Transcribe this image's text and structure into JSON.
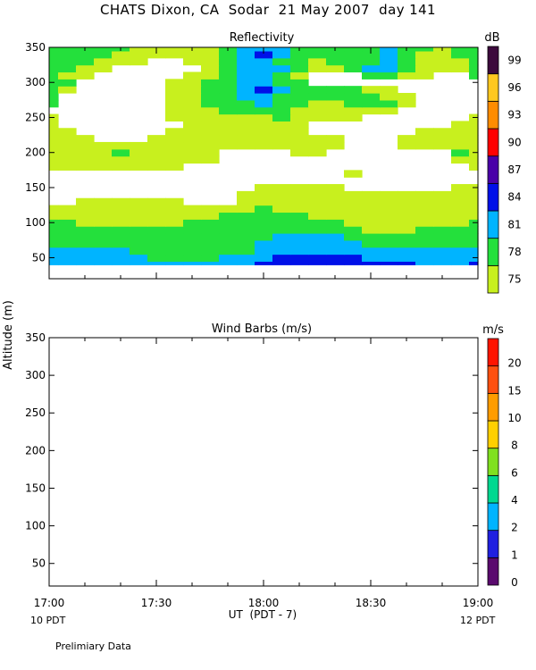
{
  "page_title": "CHATS Dixon, CA  Sodar  21 May 2007  day 141",
  "y_axis_label": "Altitude (m)",
  "x_axis_label": "UT  (PDT - 7)",
  "x_left_note": "10 PDT",
  "x_right_note": "12 PDT",
  "footer_note": "Prelimiary Data",
  "colors": {
    "c75": "#c8f01e",
    "c78": "#24e03c",
    "c81": "#00b4ff",
    "c84": "#0010e8",
    "c87": "#4a00a8",
    "c90": "#ff0000",
    "c93": "#ff8c00",
    "c96": "#ffc820",
    "c99": "#3c0a3c"
  },
  "chart_data": [
    {
      "type": "heatmap",
      "title": "Reflectivity",
      "unit_label": "dB",
      "xlabel": "UT  (PDT - 7)",
      "ylabel": "Altitude (m)",
      "x_ticks": [
        "17:00",
        "17:30",
        "18:00",
        "18:30",
        "19:00"
      ],
      "x_range_minutes_ut": [
        1020,
        1140
      ],
      "ylim": [
        20,
        350
      ],
      "y_ticks": [
        50,
        100,
        150,
        200,
        250,
        300,
        350
      ],
      "altitudes": [
        40,
        50,
        60,
        70,
        80,
        90,
        100,
        110,
        120,
        130,
        140,
        150,
        160,
        170,
        180,
        190,
        200,
        210,
        220,
        230,
        240,
        250,
        260,
        270,
        280,
        290,
        300,
        310,
        320,
        330,
        340,
        350
      ],
      "times": [
        "17:00",
        "17:05",
        "17:10",
        "17:15",
        "17:20",
        "17:25",
        "17:30",
        "17:35",
        "17:40",
        "17:45",
        "17:50",
        "17:55",
        "18:00",
        "18:05",
        "18:10",
        "18:15",
        "18:20",
        "18:25",
        "18:30",
        "18:35",
        "18:40",
        "18:45",
        "18:50",
        "18:55",
        "19:00"
      ],
      "values_db": [
        [
          81,
          81,
          81,
          81,
          81,
          81,
          81,
          81,
          81,
          81,
          81,
          81,
          84,
          84,
          84,
          84,
          84,
          84,
          84,
          84,
          84,
          81,
          81,
          81,
          84
        ],
        [
          81,
          81,
          81,
          81,
          81,
          81,
          78,
          78,
          78,
          78,
          81,
          81,
          81,
          84,
          84,
          84,
          84,
          84,
          81,
          81,
          81,
          81,
          81,
          81,
          81
        ],
        [
          81,
          81,
          81,
          81,
          81,
          78,
          78,
          78,
          78,
          78,
          78,
          78,
          81,
          81,
          81,
          81,
          81,
          81,
          81,
          81,
          81,
          81,
          81,
          81,
          81
        ],
        [
          78,
          78,
          78,
          78,
          78,
          78,
          78,
          78,
          78,
          78,
          78,
          78,
          81,
          81,
          81,
          81,
          81,
          81,
          78,
          78,
          78,
          78,
          78,
          78,
          78
        ],
        [
          78,
          78,
          78,
          78,
          78,
          78,
          78,
          78,
          78,
          78,
          78,
          78,
          78,
          81,
          81,
          81,
          81,
          78,
          78,
          78,
          78,
          78,
          78,
          78,
          78
        ],
        [
          78,
          78,
          78,
          78,
          78,
          78,
          78,
          78,
          78,
          78,
          78,
          78,
          78,
          78,
          78,
          78,
          78,
          78,
          75,
          75,
          75,
          78,
          78,
          78,
          78
        ],
        [
          78,
          78,
          75,
          75,
          75,
          75,
          75,
          75,
          78,
          78,
          78,
          78,
          78,
          78,
          78,
          78,
          78,
          75,
          75,
          75,
          75,
          75,
          75,
          75,
          78
        ],
        [
          75,
          75,
          75,
          75,
          75,
          75,
          75,
          75,
          75,
          75,
          78,
          78,
          78,
          78,
          78,
          75,
          75,
          75,
          75,
          75,
          75,
          75,
          75,
          75,
          75
        ],
        [
          75,
          75,
          75,
          75,
          75,
          75,
          75,
          75,
          75,
          75,
          75,
          75,
          78,
          75,
          75,
          75,
          75,
          75,
          75,
          75,
          75,
          75,
          75,
          75,
          75
        ],
        [
          0,
          0,
          75,
          75,
          75,
          75,
          75,
          75,
          0,
          0,
          0,
          75,
          75,
          75,
          75,
          75,
          75,
          75,
          75,
          75,
          75,
          75,
          75,
          75,
          75
        ],
        [
          0,
          0,
          0,
          0,
          0,
          0,
          0,
          0,
          0,
          0,
          0,
          75,
          75,
          75,
          75,
          75,
          75,
          75,
          75,
          75,
          75,
          75,
          75,
          75,
          75
        ],
        [
          0,
          0,
          0,
          0,
          0,
          0,
          0,
          0,
          0,
          0,
          0,
          0,
          75,
          75,
          75,
          75,
          75,
          0,
          0,
          0,
          0,
          0,
          0,
          75,
          75
        ],
        [
          0,
          0,
          0,
          0,
          0,
          0,
          0,
          0,
          0,
          0,
          0,
          0,
          0,
          0,
          0,
          0,
          0,
          0,
          0,
          0,
          0,
          0,
          0,
          0,
          0
        ],
        [
          0,
          0,
          0,
          0,
          0,
          0,
          0,
          0,
          0,
          0,
          0,
          0,
          0,
          0,
          0,
          0,
          0,
          75,
          0,
          0,
          0,
          0,
          0,
          0,
          0
        ],
        [
          75,
          75,
          75,
          75,
          75,
          75,
          75,
          75,
          0,
          0,
          0,
          0,
          0,
          0,
          0,
          0,
          0,
          0,
          0,
          0,
          0,
          0,
          0,
          0,
          75
        ],
        [
          75,
          75,
          75,
          75,
          75,
          75,
          75,
          75,
          75,
          75,
          0,
          0,
          0,
          0,
          0,
          0,
          0,
          0,
          0,
          0,
          0,
          0,
          0,
          75,
          75
        ],
        [
          75,
          75,
          75,
          75,
          78,
          75,
          75,
          75,
          75,
          75,
          0,
          0,
          0,
          0,
          75,
          75,
          0,
          0,
          0,
          0,
          0,
          0,
          0,
          78,
          75
        ],
        [
          75,
          75,
          75,
          75,
          75,
          75,
          75,
          75,
          75,
          75,
          75,
          75,
          75,
          75,
          75,
          75,
          75,
          0,
          0,
          0,
          75,
          75,
          75,
          75,
          75
        ],
        [
          75,
          75,
          75,
          0,
          0,
          0,
          75,
          75,
          75,
          75,
          75,
          75,
          75,
          75,
          75,
          75,
          75,
          0,
          0,
          0,
          75,
          75,
          75,
          75,
          75
        ],
        [
          75,
          75,
          0,
          0,
          0,
          0,
          0,
          75,
          75,
          75,
          75,
          75,
          75,
          75,
          75,
          0,
          0,
          0,
          0,
          0,
          0,
          75,
          75,
          75,
          75
        ],
        [
          75,
          0,
          0,
          0,
          0,
          0,
          0,
          0,
          75,
          75,
          75,
          75,
          75,
          75,
          75,
          0,
          0,
          0,
          0,
          0,
          0,
          0,
          0,
          75,
          75
        ],
        [
          75,
          0,
          0,
          0,
          0,
          0,
          0,
          75,
          75,
          75,
          75,
          75,
          75,
          78,
          75,
          75,
          75,
          75,
          0,
          0,
          0,
          0,
          0,
          0,
          75
        ],
        [
          0,
          0,
          0,
          0,
          0,
          0,
          0,
          75,
          75,
          75,
          78,
          78,
          78,
          78,
          75,
          75,
          75,
          75,
          75,
          75,
          0,
          0,
          0,
          0,
          0
        ],
        [
          78,
          0,
          0,
          0,
          0,
          0,
          0,
          75,
          75,
          78,
          78,
          78,
          81,
          78,
          78,
          75,
          75,
          78,
          78,
          78,
          75,
          0,
          0,
          0,
          0
        ],
        [
          78,
          0,
          0,
          0,
          0,
          0,
          0,
          75,
          75,
          78,
          78,
          81,
          81,
          78,
          78,
          78,
          78,
          78,
          78,
          75,
          75,
          0,
          0,
          0,
          0
        ],
        [
          78,
          75,
          0,
          0,
          0,
          0,
          0,
          75,
          75,
          78,
          78,
          81,
          84,
          81,
          78,
          78,
          78,
          78,
          75,
          75,
          0,
          0,
          0,
          0,
          0
        ],
        [
          78,
          78,
          0,
          0,
          0,
          0,
          0,
          75,
          75,
          78,
          78,
          81,
          81,
          78,
          78,
          0,
          0,
          0,
          0,
          0,
          0,
          0,
          0,
          0,
          0
        ],
        [
          78,
          75,
          75,
          0,
          0,
          0,
          0,
          0,
          75,
          75,
          78,
          81,
          81,
          78,
          75,
          0,
          0,
          0,
          78,
          78,
          75,
          75,
          0,
          0,
          78
        ],
        [
          78,
          78,
          75,
          75,
          0,
          0,
          0,
          0,
          0,
          75,
          78,
          81,
          81,
          81,
          78,
          75,
          75,
          78,
          81,
          81,
          78,
          75,
          75,
          75,
          78
        ],
        [
          78,
          78,
          78,
          75,
          75,
          75,
          0,
          0,
          75,
          75,
          78,
          81,
          81,
          78,
          78,
          75,
          78,
          78,
          78,
          81,
          78,
          75,
          75,
          75,
          78
        ],
        [
          78,
          78,
          78,
          78,
          75,
          75,
          75,
          75,
          75,
          75,
          78,
          81,
          84,
          81,
          78,
          78,
          78,
          78,
          78,
          81,
          78,
          75,
          75,
          78,
          78
        ],
        [
          78,
          78,
          78,
          78,
          78,
          75,
          75,
          75,
          75,
          75,
          78,
          81,
          81,
          81,
          78,
          78,
          78,
          78,
          78,
          81,
          78,
          78,
          75,
          78,
          78
        ]
      ],
      "scale": {
        "labels": [
          "75",
          "78",
          "81",
          "84",
          "87",
          "90",
          "93",
          "96",
          "99"
        ],
        "colors": [
          "#c8f01e",
          "#24e03c",
          "#00b4ff",
          "#0010e8",
          "#4a00a8",
          "#ff0000",
          "#ff8c00",
          "#ffc820",
          "#3c0a3c"
        ]
      }
    },
    {
      "type": "scatter",
      "title": "Wind Barbs (m/s)",
      "unit_label": "m/s",
      "xlabel": "UT  (PDT - 7)",
      "ylabel": "Altitude (m)",
      "x_ticks": [
        "17:00",
        "17:30",
        "18:00",
        "18:30",
        "19:00"
      ],
      "ylim": [
        20,
        350
      ],
      "y_ticks": [
        50,
        100,
        150,
        200,
        250,
        300,
        350
      ],
      "points": [],
      "scale": {
        "labels": [
          "0",
          "1",
          "2",
          "4",
          "6",
          "8",
          "10",
          "15",
          "20"
        ],
        "colors": [
          "#5a0a6e",
          "#2020e0",
          "#00b4ff",
          "#00d890",
          "#80e020",
          "#ffd000",
          "#ff9c00",
          "#ff5010",
          "#ff1400"
        ]
      }
    }
  ]
}
